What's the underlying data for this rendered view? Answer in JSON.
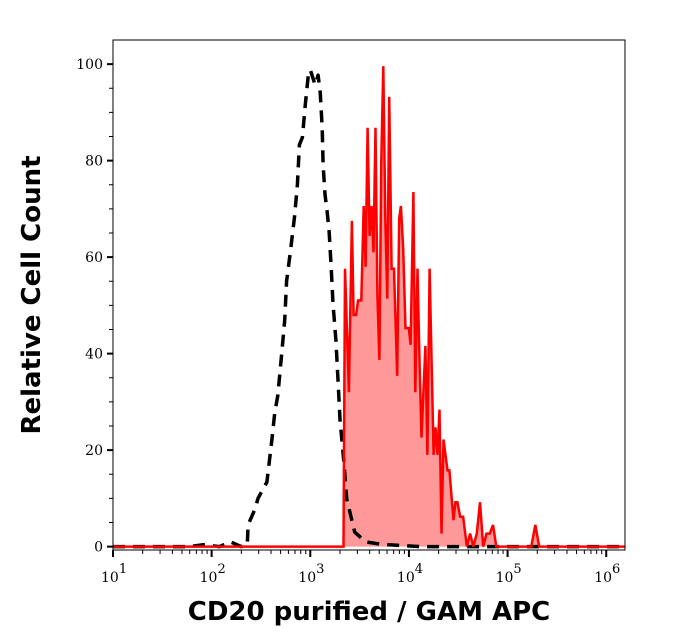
{
  "chart_data": {
    "type": "area",
    "title": "",
    "xlabel": "CD20 purified / GAM APC",
    "ylabel": "Relative Cell Count",
    "x_scale": "log",
    "xlim": [
      10,
      1550000
    ],
    "ylim": [
      -0.7,
      105
    ],
    "x_ticks": [
      {
        "base": "10",
        "exp": "1",
        "value": 10
      },
      {
        "base": "10",
        "exp": "2",
        "value": 100
      },
      {
        "base": "10",
        "exp": "3",
        "value": 1000
      },
      {
        "base": "10",
        "exp": "4",
        "value": 10000
      },
      {
        "base": "10",
        "exp": "5",
        "value": 100000
      },
      {
        "base": "10",
        "exp": "6",
        "value": 1000000
      }
    ],
    "y_ticks": [
      "0",
      "20",
      "40",
      "60",
      "80",
      "100"
    ],
    "grid": false,
    "series": [
      {
        "style": "dashed-line",
        "color": "#000000",
        "x": [
          10,
          60,
          82,
          120,
          155,
          200,
          230,
          234,
          275,
          295,
          363,
          407,
          437,
          468,
          513,
          550,
          575,
          631,
          692,
          741,
          776,
          832,
          891,
          955,
          1000,
          1120,
          1200,
          1260,
          1320,
          1350,
          1410,
          1480,
          1550,
          1620,
          1700,
          1820,
          1910,
          2000,
          2190,
          2340,
          2820,
          3630,
          5130,
          12900,
          41700,
          1550000
        ],
        "y": [
          0,
          0,
          0.4,
          0,
          1,
          0,
          0.4,
          4.5,
          7.8,
          10,
          13.4,
          22,
          27.8,
          31.3,
          40,
          46.9,
          55,
          61.5,
          68.3,
          75,
          83.3,
          84.8,
          91.6,
          97.7,
          98.8,
          95.7,
          97.7,
          94.2,
          86.8,
          79.2,
          73,
          69.5,
          65.4,
          58.6,
          50.4,
          42.8,
          34.6,
          26.3,
          17.5,
          9.9,
          3,
          1,
          0.5,
          0,
          0,
          0
        ]
      },
      {
        "style": "filled-line",
        "color": "#ff0000",
        "fill": "#ff9999",
        "x": [
          10,
          2170,
          2250,
          2460,
          2640,
          2750,
          2910,
          3050,
          3290,
          3480,
          3640,
          3810,
          3990,
          4180,
          4370,
          4580,
          4790,
          5020,
          5250,
          5500,
          5760,
          6030,
          6310,
          6670,
          7050,
          7610,
          7970,
          8290,
          8750,
          9240,
          9970,
          10400,
          11100,
          11600,
          12200,
          12800,
          13400,
          14700,
          15400,
          16200,
          17800,
          18600,
          19500,
          20400,
          21400,
          22400,
          24600,
          25700,
          28300,
          29600,
          31000,
          33100,
          35400,
          38700,
          41700,
          44900,
          48700,
          52500,
          56600,
          61100,
          66000,
          71200,
          76800,
          174000,
          191000,
          209000,
          1550000
        ],
        "y": [
          0,
          0,
          57.6,
          32,
          67.5,
          48,
          48,
          51,
          51,
          70.6,
          58,
          86.8,
          64.4,
          70.6,
          61,
          86.8,
          52,
          38.7,
          80,
          99.6,
          68,
          51.4,
          93.2,
          57.6,
          57.6,
          35.4,
          68,
          70.6,
          61.7,
          45.3,
          45.3,
          41.8,
          73.5,
          32,
          57.6,
          38.5,
          22.6,
          41.6,
          19,
          57.6,
          19,
          24.7,
          19,
          28.4,
          2.7,
          22.2,
          15.8,
          15.8,
          5.5,
          9.2,
          9.2,
          6.2,
          6.2,
          0,
          2.7,
          0,
          2.7,
          9.2,
          0,
          2.7,
          2.7,
          4.5,
          0,
          0,
          4.5,
          0,
          0
        ]
      }
    ]
  }
}
